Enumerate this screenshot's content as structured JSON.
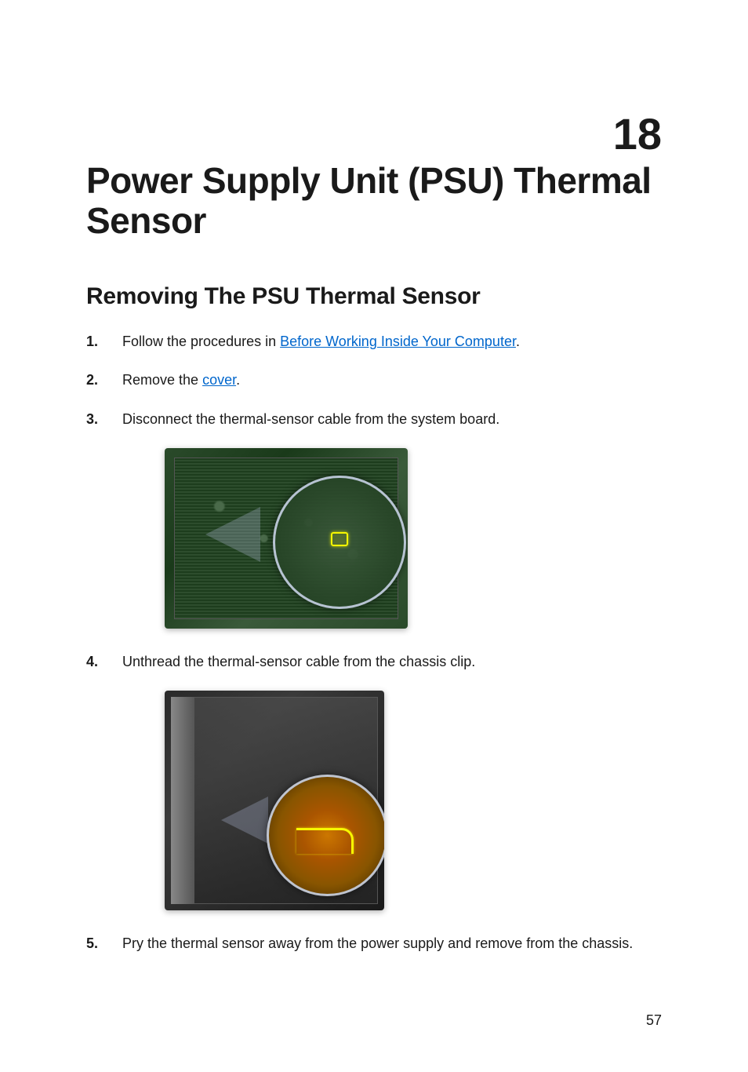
{
  "chapter": {
    "number": "18",
    "title": "Power Supply Unit (PSU) Thermal Sensor"
  },
  "section": {
    "heading": "Removing The PSU Thermal Sensor"
  },
  "steps": [
    {
      "num": "1.",
      "prefix": "Follow the procedures in ",
      "link": "Before Working Inside Your Computer",
      "suffix": "."
    },
    {
      "num": "2.",
      "prefix": "Remove the ",
      "link": "cover",
      "suffix": "."
    },
    {
      "num": "3.",
      "text": "Disconnect the thermal-sensor cable from the system board."
    },
    {
      "num": "4.",
      "text": "Unthread the thermal-sensor cable from the chassis clip."
    },
    {
      "num": "5.",
      "text": "Pry the thermal sensor away from the power supply and remove from the chassis."
    }
  ],
  "figures": {
    "fig1": {
      "alt": "System board with thermal sensor connector highlighted",
      "highlight_color": "#f7f700",
      "magnify_border": "#c8d2e6"
    },
    "fig2": {
      "alt": "Chassis clip with thermal sensor cable routing highlighted",
      "highlight_color": "#f7f700",
      "magnify_border": "#c8d2e6"
    }
  },
  "page_number": "57",
  "colors": {
    "link": "#0066cc",
    "text": "#1a1a1a",
    "highlight": "#f7f700"
  },
  "typography": {
    "chapter_number_size": 56,
    "chapter_title_size": 46,
    "section_heading_size": 30,
    "body_size": 18
  }
}
